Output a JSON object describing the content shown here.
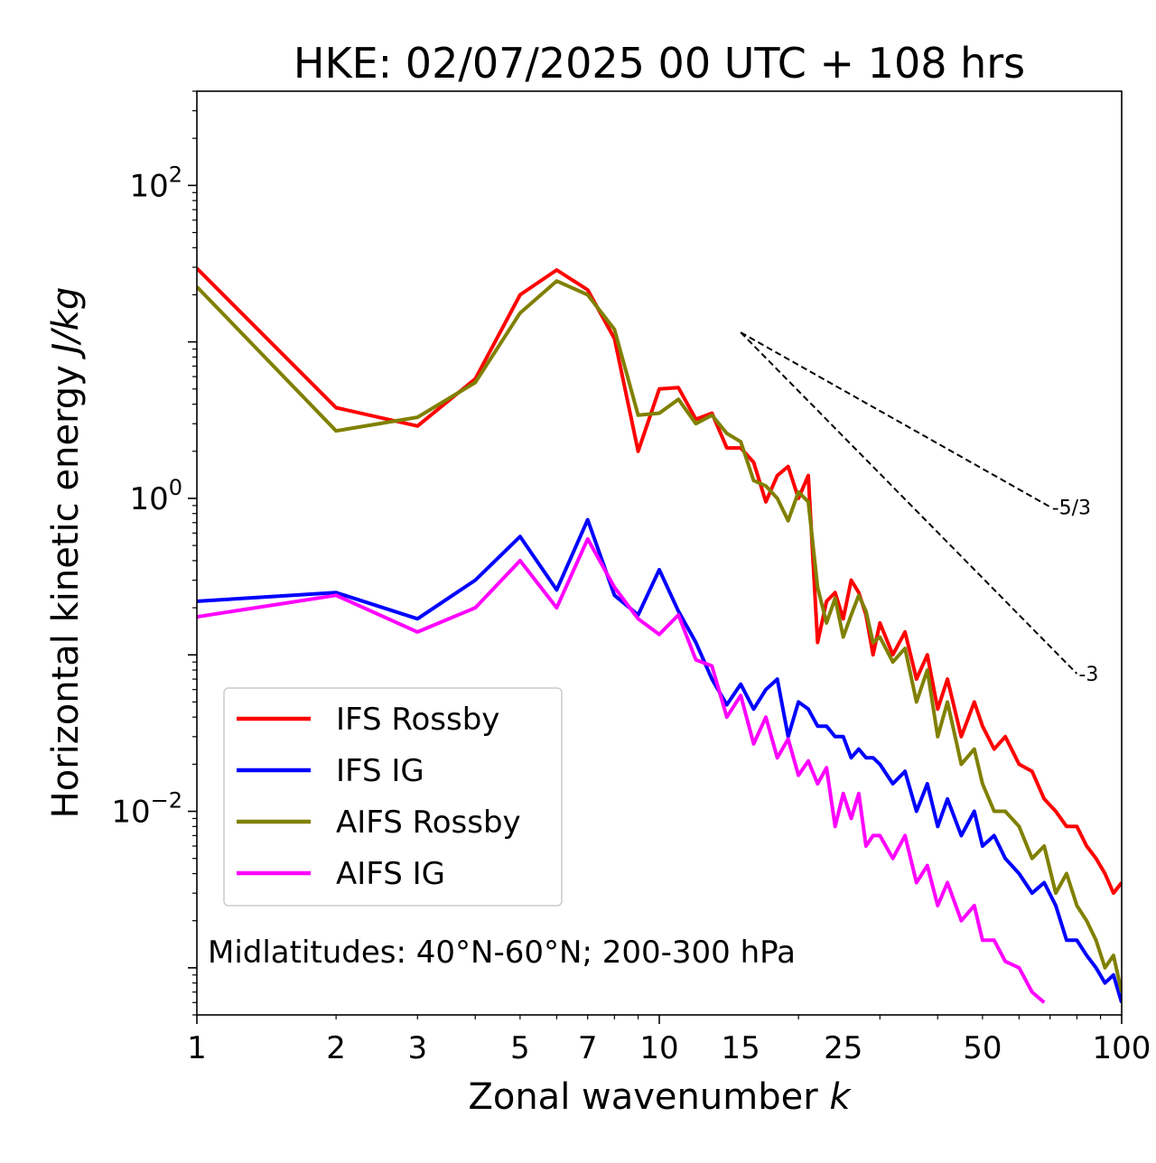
{
  "chart_data": {
    "type": "line",
    "title": "HKE: 02/07/2025 00 UTC + 108 hrs",
    "xlabel": "Zonal wavenumber",
    "xlabel_var": "k",
    "ylabel": "Horizontal kinetic energy",
    "ylabel_unit": "J/kg",
    "x_scale": "log",
    "y_scale": "log",
    "xlim": [
      1,
      100
    ],
    "ylim": [
      0.0005,
      400
    ],
    "x_ticks": [
      1,
      2,
      3,
      5,
      7,
      10,
      15,
      25,
      50,
      100
    ],
    "x_tick_labels": [
      "1",
      "2",
      "3",
      "5",
      "7",
      "10",
      "15",
      "25",
      "50",
      "100"
    ],
    "y_ticks": [
      {
        "value": 100,
        "base": "10",
        "exp": "2"
      },
      {
        "value": 1,
        "base": "10",
        "exp": "0"
      },
      {
        "value": 0.01,
        "base": "10",
        "exp": "−2"
      }
    ],
    "grid": false,
    "legend_position": "lower-left",
    "annotation": "Midlatitudes: 40°N-60°N; 200-300 hPa",
    "reference_lines": [
      {
        "label": "-5/3",
        "slope": -1.6667,
        "x": [
          15,
          70
        ],
        "y_start": 11.5
      },
      {
        "label": "-3",
        "slope": -3,
        "x": [
          15,
          80
        ],
        "y_start": 11.5
      }
    ],
    "series": [
      {
        "name": "IFS Rossby",
        "color": "#ff0000",
        "x": [
          1,
          2,
          3,
          4,
          5,
          6,
          7,
          8,
          9,
          10,
          11,
          12,
          13,
          14,
          15,
          16,
          17,
          18,
          19,
          20,
          21,
          22,
          23,
          24,
          25,
          26,
          27,
          28,
          29,
          30,
          32,
          34,
          36,
          38,
          40,
          42,
          45,
          48,
          50,
          53,
          56,
          60,
          64,
          68,
          72,
          76,
          80,
          84,
          88,
          92,
          96,
          100
        ],
        "y": [
          29.5,
          3.8,
          2.9,
          5.8,
          20.0,
          28.8,
          21.5,
          10.5,
          2.0,
          5.0,
          5.1,
          3.2,
          3.5,
          2.1,
          2.1,
          1.7,
          0.95,
          1.4,
          1.6,
          1.0,
          1.4,
          0.12,
          0.22,
          0.25,
          0.17,
          0.3,
          0.25,
          0.18,
          0.1,
          0.16,
          0.1,
          0.14,
          0.07,
          0.1,
          0.045,
          0.07,
          0.03,
          0.05,
          0.035,
          0.025,
          0.03,
          0.02,
          0.018,
          0.012,
          0.01,
          0.008,
          0.008,
          0.006,
          0.005,
          0.004,
          0.003,
          0.0035
        ]
      },
      {
        "name": "IFS IG",
        "color": "#0000ff",
        "x": [
          1,
          2,
          3,
          4,
          5,
          6,
          7,
          8,
          9,
          10,
          11,
          12,
          13,
          14,
          15,
          16,
          17,
          18,
          19,
          20,
          21,
          22,
          23,
          24,
          25,
          26,
          27,
          28,
          29,
          30,
          32,
          34,
          36,
          38,
          40,
          42,
          45,
          48,
          50,
          53,
          56,
          60,
          64,
          68,
          72,
          76,
          80,
          84,
          88,
          92,
          96,
          100
        ],
        "y": [
          0.22,
          0.25,
          0.17,
          0.3,
          0.57,
          0.26,
          0.73,
          0.24,
          0.18,
          0.35,
          0.19,
          0.12,
          0.07,
          0.048,
          0.065,
          0.045,
          0.06,
          0.07,
          0.03,
          0.05,
          0.045,
          0.035,
          0.035,
          0.03,
          0.03,
          0.022,
          0.025,
          0.022,
          0.022,
          0.02,
          0.015,
          0.018,
          0.01,
          0.015,
          0.008,
          0.012,
          0.007,
          0.01,
          0.006,
          0.007,
          0.005,
          0.004,
          0.003,
          0.0035,
          0.0025,
          0.0015,
          0.0015,
          0.0012,
          0.001,
          0.0008,
          0.0009,
          0.0006
        ]
      },
      {
        "name": "AIFS Rossby",
        "color": "#808000",
        "x": [
          1,
          2,
          3,
          4,
          5,
          6,
          7,
          8,
          9,
          10,
          11,
          12,
          13,
          14,
          15,
          16,
          17,
          18,
          19,
          20,
          21,
          22,
          23,
          24,
          25,
          26,
          27,
          28,
          29,
          30,
          32,
          34,
          36,
          38,
          40,
          42,
          45,
          48,
          50,
          53,
          56,
          60,
          64,
          68,
          72,
          76,
          80,
          84,
          88,
          92,
          96,
          100
        ],
        "y": [
          22.5,
          2.7,
          3.3,
          5.5,
          15.3,
          24.5,
          20.0,
          12.0,
          3.4,
          3.5,
          4.3,
          3.0,
          3.4,
          2.6,
          2.3,
          1.3,
          1.2,
          1.0,
          0.72,
          1.1,
          0.95,
          0.27,
          0.16,
          0.23,
          0.13,
          0.18,
          0.24,
          0.19,
          0.12,
          0.13,
          0.09,
          0.11,
          0.05,
          0.08,
          0.03,
          0.05,
          0.02,
          0.025,
          0.015,
          0.01,
          0.01,
          0.008,
          0.005,
          0.006,
          0.003,
          0.004,
          0.0025,
          0.002,
          0.0015,
          0.001,
          0.0012,
          0.0007
        ]
      },
      {
        "name": "AIFS IG",
        "color": "#ff00ff",
        "x": [
          1,
          2,
          3,
          4,
          5,
          6,
          7,
          8,
          9,
          10,
          11,
          12,
          13,
          14,
          15,
          16,
          17,
          18,
          19,
          20,
          21,
          22,
          23,
          24,
          25,
          26,
          27,
          28,
          29,
          30,
          32,
          34,
          36,
          38,
          40,
          42,
          45,
          48,
          50,
          53,
          56,
          60,
          64,
          68
        ],
        "y": [
          0.175,
          0.24,
          0.14,
          0.2,
          0.4,
          0.2,
          0.55,
          0.27,
          0.17,
          0.135,
          0.18,
          0.093,
          0.085,
          0.04,
          0.055,
          0.027,
          0.04,
          0.022,
          0.029,
          0.017,
          0.021,
          0.015,
          0.019,
          0.008,
          0.013,
          0.009,
          0.013,
          0.006,
          0.007,
          0.007,
          0.005,
          0.007,
          0.0035,
          0.0045,
          0.0025,
          0.0035,
          0.002,
          0.0025,
          0.0015,
          0.0015,
          0.0011,
          0.001,
          0.0007,
          0.0006
        ]
      }
    ]
  }
}
